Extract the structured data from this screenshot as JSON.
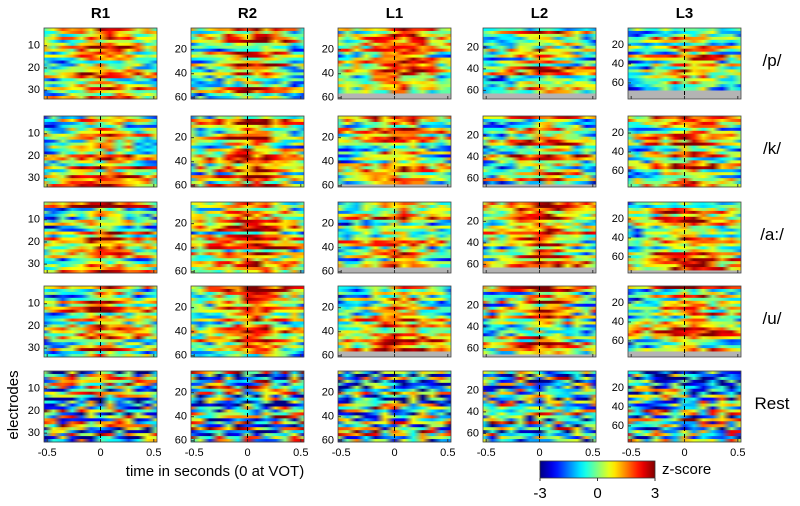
{
  "columns": [
    {
      "title": "R1",
      "ylim": [
        2,
        34
      ],
      "yticks": [
        10,
        20,
        30
      ]
    },
    {
      "title": "R2",
      "ylim": [
        2,
        61
      ],
      "yticks": [
        20,
        40,
        60
      ]
    },
    {
      "title": "L1",
      "ylim": [
        2,
        61
      ],
      "yticks": [
        20,
        40,
        60
      ]
    },
    {
      "title": "L2",
      "ylim": [
        2,
        68
      ],
      "yticks": [
        20,
        40,
        60
      ]
    },
    {
      "title": "L3",
      "ylim": [
        2,
        77
      ],
      "yticks": [
        20,
        40,
        60
      ]
    }
  ],
  "rows": [
    "/p/",
    "/k/",
    "/a:/",
    "/u/",
    "Rest"
  ],
  "xlim": [
    -0.53,
    0.53
  ],
  "xticks": [
    -0.5,
    0,
    0.5
  ],
  "y_label": "electrodes",
  "x_label": "time in seconds (0 at VOT)",
  "colorbar": {
    "label": "z-score",
    "range": [
      -3,
      3
    ],
    "ticks": [
      -3,
      0,
      3
    ]
  }
}
